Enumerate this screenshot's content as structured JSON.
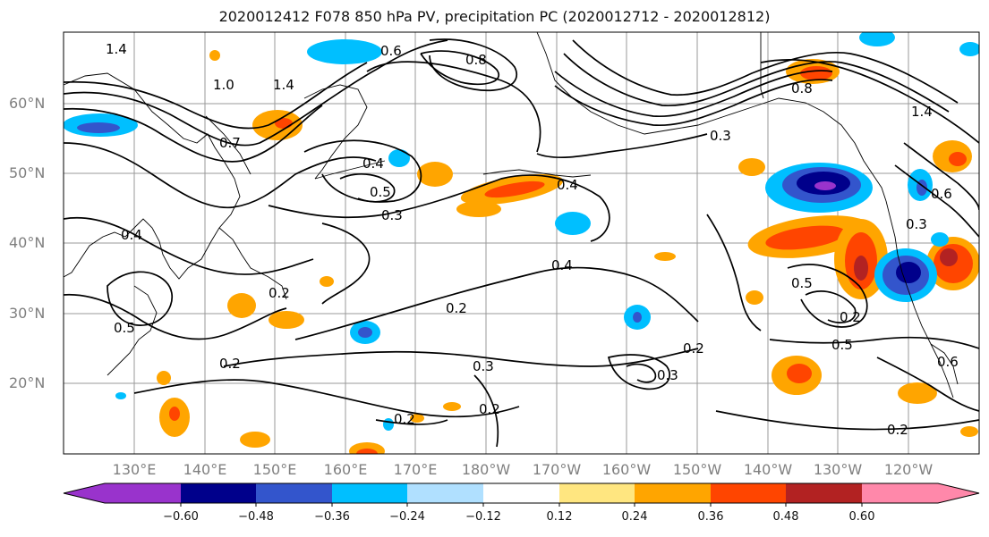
{
  "title": "2020012412 F078 850 hPa PV, precipitation PC (2020012712 - 2020012812)",
  "map": {
    "lat_labels": [
      "60°N",
      "50°N",
      "40°N",
      "30°N",
      "20°N"
    ],
    "lon_labels": [
      "130°E",
      "140°E",
      "150°E",
      "160°E",
      "170°E",
      "180°W",
      "170°W",
      "160°W",
      "150°W",
      "140°W",
      "130°W",
      "120°W"
    ],
    "contour_labels": [
      "1.4",
      "1.0",
      "0.6",
      "0.8",
      "1.4",
      "0.7",
      "0.4",
      "0.5",
      "0.3",
      "0.4",
      "0.2",
      "0.2",
      "0.5",
      "0.2",
      "0.3",
      "0.2",
      "0.2",
      "0.4",
      "0.4",
      "0.3",
      "0.3",
      "0.2",
      "0.5",
      "0.2",
      "0.5",
      "0.6",
      "0.2",
      "0.3",
      "0.6",
      "0.8",
      "1.4"
    ],
    "contour_color": "#000000",
    "coastline_color": "#000000",
    "grid_color": "#999999"
  },
  "colorbar": {
    "ticks": [
      "−0.60",
      "−0.48",
      "−0.36",
      "−0.24",
      "−0.12",
      "0.12",
      "0.24",
      "0.36",
      "0.48",
      "0.60"
    ],
    "colors": [
      "#9933cc",
      "#00008b",
      "#3355cc",
      "#00bfff",
      "#b0e0ff",
      "#ffffff",
      "#ffe680",
      "#ffa500",
      "#ff4500",
      "#b22222",
      "#ff88aa"
    ]
  }
}
